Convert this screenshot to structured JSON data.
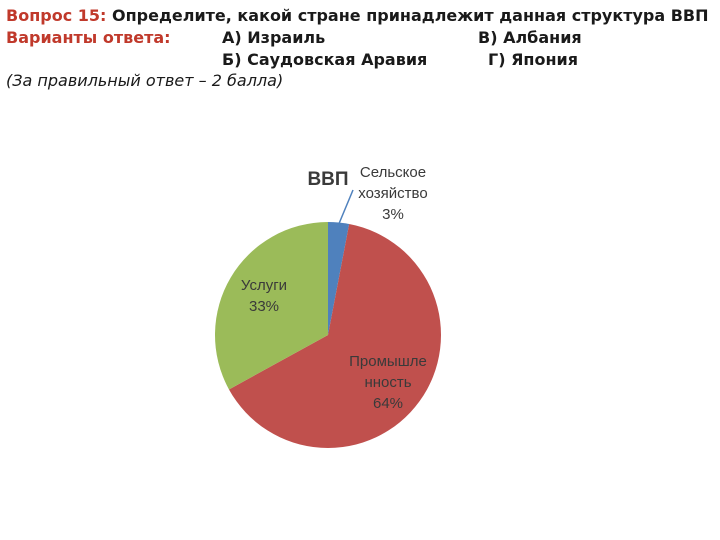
{
  "question": {
    "label": "Вопрос 15:",
    "text": "Определите, какой стране принадлежит данная структура ВВП",
    "answers_label": "Варианты ответа:",
    "options": {
      "a": "А) Израиль",
      "b": "Б) Саудовская Аравия",
      "v": "В) Албания",
      "g": "Г) Япония"
    },
    "note": "(За правильный ответ – 2 балла)"
  },
  "colors": {
    "label_red": "#c0392b",
    "agriculture": "#4f81bd",
    "industry": "#c0504d",
    "services": "#9bbb59"
  },
  "chart_data": {
    "type": "pie",
    "title": "ВВП",
    "slices": [
      {
        "label_lines": [
          "Сельское",
          "хозяйство"
        ],
        "value_label": "3%",
        "value": 3
      },
      {
        "label_lines": [
          "Промышле",
          "нность"
        ],
        "value_label": "64%",
        "value": 64
      },
      {
        "label_lines": [
          "Услуги"
        ],
        "value_label": "33%",
        "value": 33
      }
    ]
  }
}
